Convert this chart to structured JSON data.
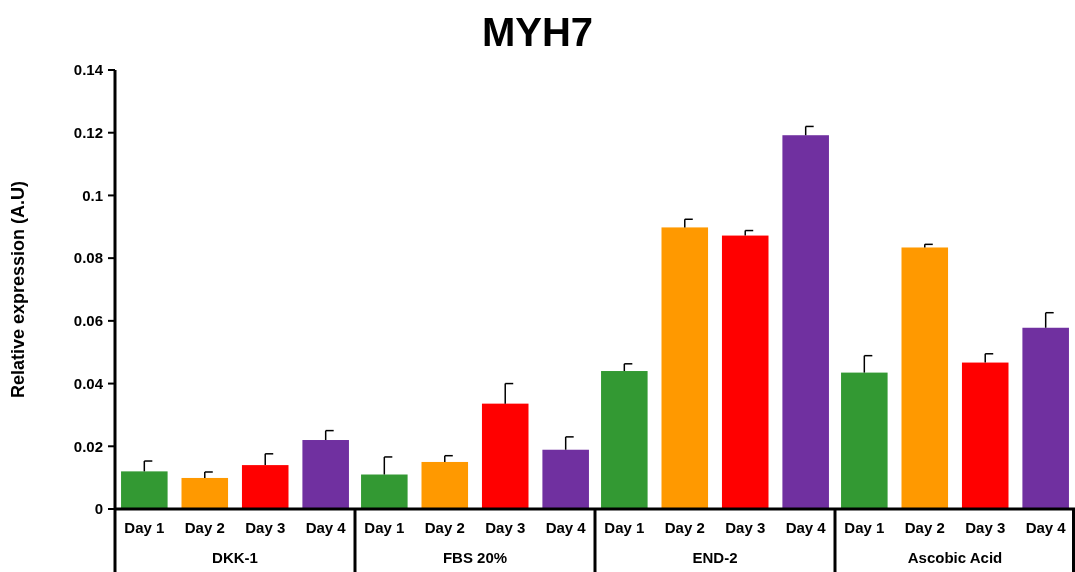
{
  "chart_data": {
    "type": "bar",
    "title": "MYH7",
    "ylabel": "Relative expression (A.U)",
    "categories": [
      "DKK-1",
      "FBS 20%",
      "END-2",
      "Ascobic Acid"
    ],
    "series": [
      {
        "name": "Day 1",
        "color": "#339933",
        "values": [
          0.012,
          0.011,
          0.044,
          0.0435
        ],
        "errors": [
          [
            0.012,
            0.0153
          ],
          [
            0.011,
            0.0166
          ],
          [
            0.044,
            0.0463
          ],
          [
            0.0435,
            0.0489
          ]
        ]
      },
      {
        "name": "Day 2",
        "color": "#ff9900",
        "values": [
          0.0099,
          0.015,
          0.0898,
          0.0834
        ],
        "errors": [
          [
            0.0099,
            0.0118
          ],
          [
            0.015,
            0.017
          ],
          [
            0.0898,
            0.0924
          ],
          [
            0.0834,
            0.0844
          ]
        ]
      },
      {
        "name": "Day 3",
        "color": "#ff0000",
        "values": [
          0.014,
          0.0336,
          0.0872,
          0.0467
        ],
        "errors": [
          [
            0.014,
            0.0176
          ],
          [
            0.0336,
            0.04
          ],
          [
            0.0872,
            0.0888
          ],
          [
            0.0467,
            0.0495
          ]
        ]
      },
      {
        "name": "Day 4",
        "color": "#7030a0",
        "values": [
          0.022,
          0.0189,
          0.1192,
          0.0578
        ],
        "errors": [
          [
            0.022,
            0.025
          ],
          [
            0.0189,
            0.023
          ],
          [
            0.1192,
            0.122
          ],
          [
            0.0578,
            0.0626
          ]
        ]
      }
    ],
    "ylim": [
      0,
      0.14
    ],
    "yticks": [
      0,
      0.02,
      0.04,
      0.06,
      0.08,
      0.1,
      0.12,
      0.14
    ],
    "grid": false
  }
}
